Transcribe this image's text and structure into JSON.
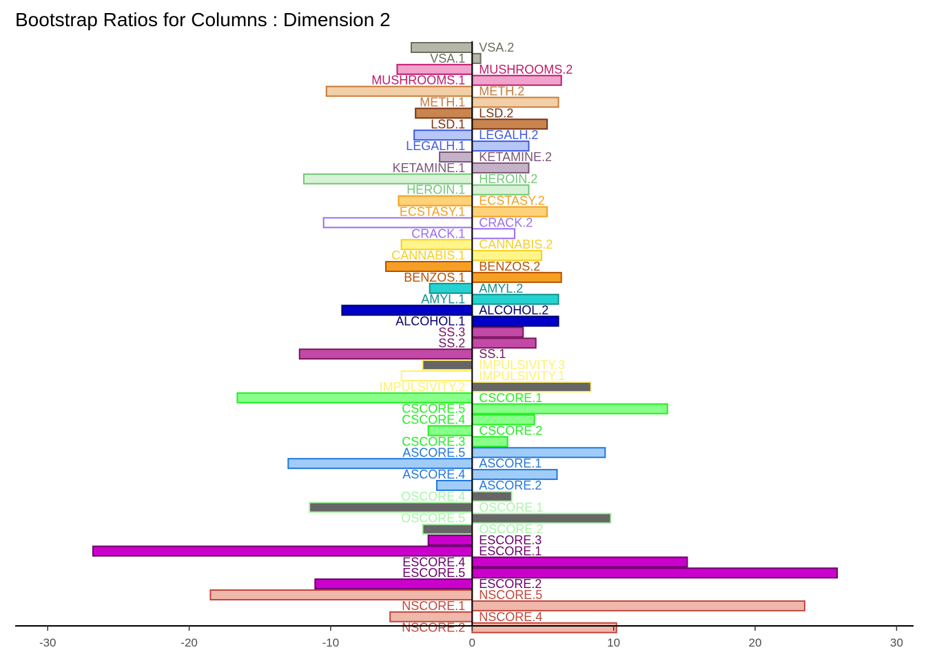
{
  "chart_data": {
    "type": "bar",
    "orientation": "horizontal",
    "title": "Bootstrap Ratios for Columns : Dimension 2",
    "xlabel": "",
    "ylabel": "",
    "xlim": [
      -32.3,
      31.2
    ],
    "xticks": [
      -30,
      -20,
      -10,
      0,
      10,
      20,
      30
    ],
    "grid": false,
    "legend": "none",
    "bars": [
      {
        "label": "VSA.2",
        "value": -4.3,
        "color": "#6b6e5a",
        "fill": "#b6b7ab"
      },
      {
        "label": "VSA.1",
        "value": 0.6,
        "color": "#6b6e5a",
        "fill": "#b6b7ab"
      },
      {
        "label": "MUSHROOMS.2",
        "value": -5.3,
        "color": "#c11a6b",
        "fill": "#f0a3cc"
      },
      {
        "label": "MUSHROOMS.1",
        "value": 6.3,
        "color": "#c11a6b",
        "fill": "#f0a3cc"
      },
      {
        "label": "METH.2",
        "value": -10.3,
        "color": "#c67b3b",
        "fill": "#f2cfa7"
      },
      {
        "label": "METH.1",
        "value": 6.1,
        "color": "#c67b3b",
        "fill": "#f2cfa7"
      },
      {
        "label": "LSD.2",
        "value": -4.0,
        "color": "#7a3410",
        "fill": "#c98550"
      },
      {
        "label": "LSD.1",
        "value": 5.3,
        "color": "#7a3410",
        "fill": "#c98550"
      },
      {
        "label": "LEGALH.2",
        "value": -4.1,
        "color": "#3f5be0",
        "fill": "#b6c6f7"
      },
      {
        "label": "LEGALH.1",
        "value": 4.0,
        "color": "#3f5be0",
        "fill": "#b6c6f7"
      },
      {
        "label": "KETAMINE.2",
        "value": -2.3,
        "color": "#7a5577",
        "fill": "#c5b2c8"
      },
      {
        "label": "KETAMINE.1",
        "value": 4.0,
        "color": "#7a5577",
        "fill": "#c5b2c8"
      },
      {
        "label": "HEROIN.2",
        "value": -11.9,
        "color": "#6fc975",
        "fill": "#d8f2d6"
      },
      {
        "label": "HEROIN.1",
        "value": 4.0,
        "color": "#6fc975",
        "fill": "#d8f2d6"
      },
      {
        "label": "ECSTASY.2",
        "value": -5.2,
        "color": "#f0a020",
        "fill": "#ffd27a"
      },
      {
        "label": "ECSTASY.1",
        "value": 5.3,
        "color": "#f0a020",
        "fill": "#ffd27a"
      },
      {
        "label": "CRACK.2",
        "value": -10.5,
        "color": "#9a6df0",
        "fill": "#ffffff"
      },
      {
        "label": "CRACK.1",
        "value": 3.0,
        "color": "#9a6df0",
        "fill": "#ffffff"
      },
      {
        "label": "CANNABIS.2",
        "value": -5.0,
        "color": "#f5d020",
        "fill": "#fff58a"
      },
      {
        "label": "CANNABIS.1",
        "value": 4.9,
        "color": "#f5d020",
        "fill": "#fff58a"
      },
      {
        "label": "BENZOS.2",
        "value": -6.1,
        "color": "#b85000",
        "fill": "#f5a025"
      },
      {
        "label": "BENZOS.1",
        "value": 6.3,
        "color": "#b85000",
        "fill": "#f5a025"
      },
      {
        "label": "AMYL.2",
        "value": -3.0,
        "color": "#10908e",
        "fill": "#25d2d0"
      },
      {
        "label": "AMYL.1",
        "value": 6.1,
        "color": "#10908e",
        "fill": "#25d2d0"
      },
      {
        "label": "ALCOHOL.2",
        "value": -9.2,
        "color": "#000070",
        "fill": "#0000c8"
      },
      {
        "label": "ALCOHOL.1",
        "value": 6.1,
        "color": "#000070",
        "fill": "#0000c8"
      },
      {
        "label": "SS.3",
        "value": 3.6,
        "color": "#7a1460",
        "fill": "#c24aa6"
      },
      {
        "label": "SS.2",
        "value": 4.5,
        "color": "#7a1460",
        "fill": "#c24aa6"
      },
      {
        "label": "SS.1",
        "value": -12.2,
        "color": "#7a1460",
        "fill": "#c24aa6"
      },
      {
        "label": "IMPULSIVITY.3",
        "value": -3.5,
        "color": "#fff070",
        "fill": "#666666"
      },
      {
        "label": "IMPULSIVITY.1",
        "value": -5.0,
        "color": "#fff070",
        "fill": "#ffffff"
      },
      {
        "label": "IMPULSIVITY.2",
        "value": 8.4,
        "color": "#fff070",
        "fill": "#666666"
      },
      {
        "label": "CSCORE.1",
        "value": -16.6,
        "color": "#22ee22",
        "fill": "#88ff88"
      },
      {
        "label": "CSCORE.5",
        "value": 13.8,
        "color": "#22ee22",
        "fill": "#88ff88"
      },
      {
        "label": "CSCORE.4",
        "value": 4.4,
        "color": "#22ee22",
        "fill": "#88ff88"
      },
      {
        "label": "CSCORE.2",
        "value": -3.1,
        "color": "#22ee22",
        "fill": "#88ff88"
      },
      {
        "label": "CSCORE.3",
        "value": 2.5,
        "color": "#22ee22",
        "fill": "#88ff88"
      },
      {
        "label": "ASCORE.5",
        "value": 9.4,
        "color": "#2277dd",
        "fill": "#a0ccf8"
      },
      {
        "label": "ASCORE.1",
        "value": -13.0,
        "color": "#2277dd",
        "fill": "#a0ccf8"
      },
      {
        "label": "ASCORE.4",
        "value": 6.0,
        "color": "#2277dd",
        "fill": "#a0ccf8"
      },
      {
        "label": "ASCORE.2",
        "value": -2.5,
        "color": "#2277dd",
        "fill": "#a0ccf8"
      },
      {
        "label": "OSCORE.4",
        "value": 2.8,
        "color": "#a8f5a8",
        "fill": "#666666"
      },
      {
        "label": "OSCORE.1",
        "value": -11.5,
        "color": "#a8f5a8",
        "fill": "#666666"
      },
      {
        "label": "OSCORE.5",
        "value": 9.8,
        "color": "#a8f5a8",
        "fill": "#666666"
      },
      {
        "label": "OSCORE.2",
        "value": -3.5,
        "color": "#a8f5a8",
        "fill": "#666666"
      },
      {
        "label": "ESCORE.3",
        "value": -3.1,
        "color": "#6a006a",
        "fill": "#cc00cc"
      },
      {
        "label": "ESCORE.1",
        "value": -26.8,
        "color": "#6a006a",
        "fill": "#cc00cc"
      },
      {
        "label": "ESCORE.4",
        "value": 15.2,
        "color": "#6a006a",
        "fill": "#cc00cc"
      },
      {
        "label": "ESCORE.5",
        "value": 25.8,
        "color": "#6a006a",
        "fill": "#cc00cc"
      },
      {
        "label": "ESCORE.2",
        "value": -11.1,
        "color": "#6a006a",
        "fill": "#cc00cc"
      },
      {
        "label": "NSCORE.5",
        "value": -18.5,
        "color": "#c0463a",
        "fill": "#f0b7ab"
      },
      {
        "label": "NSCORE.1",
        "value": 23.5,
        "color": "#c0463a",
        "fill": "#f0b7ab"
      },
      {
        "label": "NSCORE.4",
        "value": -5.8,
        "color": "#c0463a",
        "fill": "#f0b7ab"
      },
      {
        "label": "NSCORE.2",
        "value": 10.2,
        "color": "#c0463a",
        "fill": "#f0b7ab"
      }
    ]
  }
}
